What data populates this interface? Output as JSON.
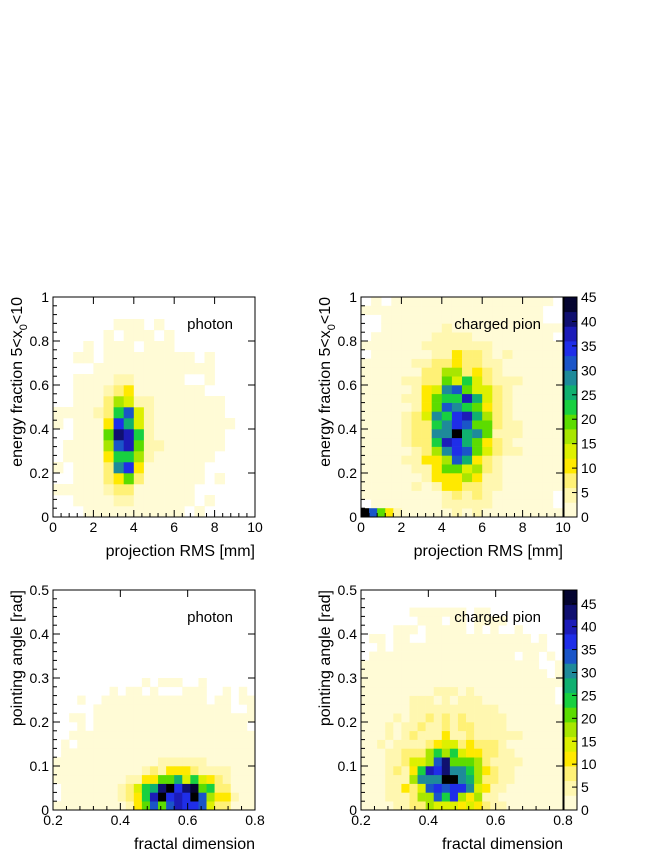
{
  "chart_data": [
    {
      "type": "heatmap",
      "label": "photon",
      "xlabel": "projection RMS [mm]",
      "ylabel": "energy fraction 5<x",
      "ylabel_sub": "0",
      "ylabel_tail": "<10",
      "xlim": [
        0,
        10
      ],
      "ylim": [
        0,
        1
      ],
      "xticks": [
        "0",
        "2",
        "4",
        "6",
        "8",
        "10"
      ],
      "yticks": [
        "0",
        "0.2",
        "0.4",
        "0.6",
        "0.8",
        "1"
      ],
      "bins": [
        20,
        20
      ],
      "blob": {
        "cx": 3.5,
        "cy": 0.35,
        "sx": 0.5,
        "sy": 0.12,
        "peak": 45
      },
      "halo": {
        "cx": 4.3,
        "cy": 0.35,
        "sx": 1.8,
        "sy": 0.22,
        "peak": 2.5
      },
      "colorbar": false
    },
    {
      "type": "heatmap",
      "label": "charged pion",
      "xlabel": "projection RMS [mm]",
      "ylabel": "energy fraction 5<x",
      "ylabel_sub": "0",
      "ylabel_tail": "<10",
      "xlim": [
        0,
        10
      ],
      "ylim": [
        0,
        1
      ],
      "xticks": [
        "0",
        "2",
        "4",
        "6",
        "8",
        "10"
      ],
      "yticks": [
        "0",
        "0.2",
        "0.4",
        "0.6",
        "0.8",
        "1"
      ],
      "bins": [
        20,
        25
      ],
      "blob": {
        "cx": 4.8,
        "cy": 0.42,
        "sx": 0.9,
        "sy": 0.15,
        "peak": 36
      },
      "halo": {
        "cx": 5.0,
        "cy": 0.45,
        "sx": 2.2,
        "sy": 0.3,
        "peak": 6
      },
      "extra_row": {
        "y": 0.01,
        "x_from": 0.0,
        "x_to": 2.0,
        "values": [
          45,
          30,
          20,
          10,
          5
        ]
      },
      "colorbar": true,
      "colorbar_ticks": [
        "0",
        "5",
        "10",
        "15",
        "20",
        "25",
        "30",
        "35",
        "40",
        "45"
      ],
      "zlim": [
        0,
        45
      ]
    },
    {
      "type": "heatmap",
      "label": "photon",
      "xlabel": "fractal dimension",
      "ylabel": "pointing angle [rad]",
      "xlim": [
        0.2,
        0.8
      ],
      "ylim": [
        0,
        0.5
      ],
      "xticks": [
        "0.2",
        "0.4",
        "0.6",
        "0.8"
      ],
      "yticks": [
        "0",
        "0.1",
        "0.2",
        "0.3",
        "0.4",
        "0.5"
      ],
      "bins": [
        25,
        25
      ],
      "blob": {
        "cx": 0.575,
        "cy": 0.03,
        "sx": 0.07,
        "sy": 0.03,
        "peak": 48
      },
      "halo": {
        "cx": 0.55,
        "cy": 0.05,
        "sx": 0.16,
        "sy": 0.1,
        "peak": 3
      },
      "colorbar": false
    },
    {
      "type": "heatmap",
      "label": "charged pion",
      "xlabel": "fractal dimension",
      "ylabel": "pointing angle [rad]",
      "xlim": [
        0.2,
        0.8
      ],
      "ylim": [
        0,
        0.5
      ],
      "xticks": [
        "0.2",
        "0.4",
        "0.6",
        "0.8"
      ],
      "yticks": [
        "0",
        "0.1",
        "0.2",
        "0.3",
        "0.4",
        "0.5"
      ],
      "bins": [
        25,
        25
      ],
      "blob": {
        "cx": 0.46,
        "cy": 0.07,
        "sx": 0.06,
        "sy": 0.04,
        "peak": 40
      },
      "halo": {
        "cx": 0.47,
        "cy": 0.12,
        "sx": 0.15,
        "sy": 0.12,
        "peak": 7
      },
      "colorbar": true,
      "colorbar_ticks": [
        "0",
        "5",
        "10",
        "15",
        "20",
        "25",
        "30",
        "35",
        "40",
        "45"
      ],
      "zlim": [
        0,
        48
      ]
    }
  ],
  "palette": [
    "#ffffff",
    "#fffbd6",
    "#fff7b0",
    "#fff176",
    "#ffe900",
    "#ddf000",
    "#a8e600",
    "#5cdc00",
    "#18d040",
    "#10b070",
    "#1e8a9a",
    "#1a55c8",
    "#1f2ee8",
    "#1c1cb8",
    "#101070",
    "#050530",
    "#000000"
  ]
}
